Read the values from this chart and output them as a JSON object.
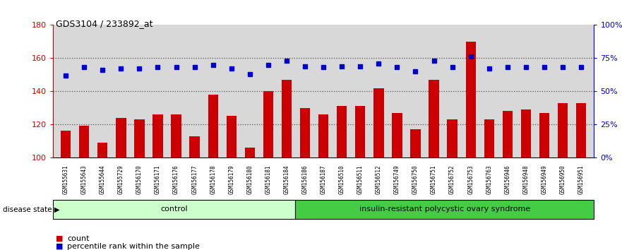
{
  "title": "GDS3104 / 233892_at",
  "samples": [
    "GSM155631",
    "GSM155643",
    "GSM155644",
    "GSM155729",
    "GSM156170",
    "GSM156171",
    "GSM156176",
    "GSM156177",
    "GSM156178",
    "GSM156179",
    "GSM156180",
    "GSM156181",
    "GSM156184",
    "GSM156186",
    "GSM156187",
    "GSM156510",
    "GSM156511",
    "GSM156512",
    "GSM156749",
    "GSM156750",
    "GSM156751",
    "GSM156752",
    "GSM156753",
    "GSM156763",
    "GSM156946",
    "GSM156948",
    "GSM156949",
    "GSM156950",
    "GSM156951"
  ],
  "counts": [
    116,
    119,
    109,
    124,
    123,
    126,
    126,
    113,
    138,
    125,
    106,
    140,
    147,
    130,
    126,
    131,
    131,
    142,
    127,
    117,
    147,
    123,
    170,
    123,
    128,
    129,
    127,
    133,
    133
  ],
  "percentiles": [
    62,
    68,
    66,
    67,
    67,
    68,
    68,
    68,
    70,
    67,
    63,
    70,
    73,
    69,
    68,
    69,
    69,
    71,
    68,
    65,
    73,
    68,
    76,
    67,
    68,
    68,
    68,
    68,
    68
  ],
  "n_control": 13,
  "bar_color": "#cc0000",
  "dot_color": "#0000cc",
  "ylim_left": [
    100,
    180
  ],
  "ylim_right": [
    0,
    100
  ],
  "yticks_left": [
    100,
    120,
    140,
    160,
    180
  ],
  "ytick_labels_right": [
    "0%",
    "25%",
    "50%",
    "75%",
    "100%"
  ],
  "control_color": "#ccffcc",
  "disease_color": "#44cc44",
  "control_label": "control",
  "disease_label": "insulin-resistant polycystic ovary syndrome",
  "legend_count": "count",
  "legend_percentile": "percentile rank within the sample",
  "xlabel_disease_state": "disease state",
  "bg_color": "#d8d8d8",
  "dotted_line_color": "#555555"
}
